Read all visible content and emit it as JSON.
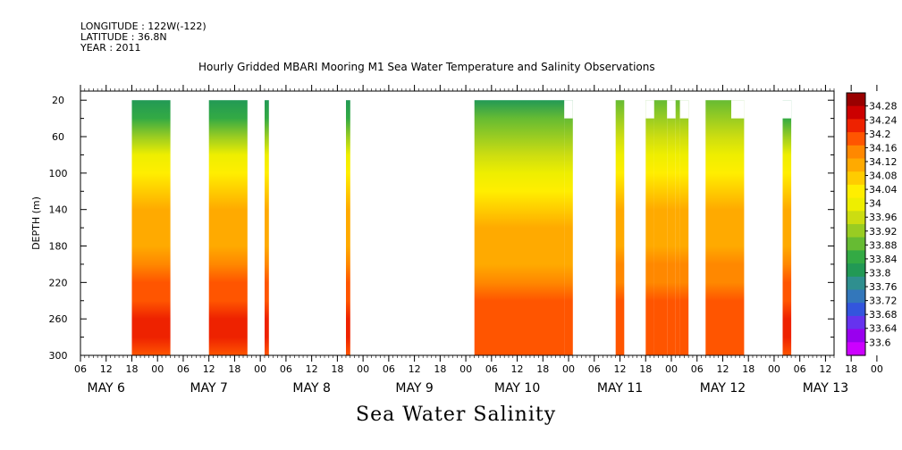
{
  "header": {
    "longitude": "LONGITUDE : 122W(-122)",
    "latitude": "LATITUDE : 36.8N",
    "year": "YEAR : 2011"
  },
  "chart_data": {
    "type": "heatmap",
    "title": "Hourly Gridded MBARI Mooring M1 Sea Water Temperature and Salinity Observations",
    "variable": "Sea Water Salinity",
    "xlabel": "",
    "ylabel": "DEPTH (m)",
    "ylim": [
      300,
      10
    ],
    "yticks": [
      20,
      60,
      100,
      140,
      180,
      220,
      260,
      300
    ],
    "x_hour_ticks": [
      "06",
      "12",
      "18",
      "00",
      "06",
      "12",
      "18",
      "00",
      "06",
      "12",
      "18",
      "00",
      "06",
      "12",
      "18",
      "00",
      "06",
      "12",
      "18",
      "00",
      "06",
      "12",
      "18",
      "00",
      "06",
      "12",
      "18",
      "00",
      "06",
      "12",
      "18",
      "00"
    ],
    "x_day_labels": [
      "MAY  6",
      "MAY  7",
      "MAY  8",
      "MAY  9",
      "MAY 10",
      "MAY 11",
      "MAY 12",
      "MAY 13"
    ],
    "colorbar": {
      "levels": [
        33.6,
        33.64,
        33.68,
        33.72,
        33.76,
        33.8,
        33.84,
        33.88,
        33.92,
        33.96,
        34,
        34.04,
        34.08,
        34.12,
        34.16,
        34.2,
        34.24,
        34.28
      ],
      "labels": [
        "34.28",
        "34.24",
        "34.2",
        "34.16",
        "34.12",
        "34.08",
        "34.04",
        "34",
        "33.96",
        "33.92",
        "33.88",
        "33.84",
        "33.8",
        "33.76",
        "33.72",
        "33.68",
        "33.64",
        "33.6"
      ],
      "colors": [
        "#cc00ff",
        "#9900ee",
        "#6633ee",
        "#3355dd",
        "#3377bb",
        "#2f8f8f",
        "#229955",
        "#33aa44",
        "#66bb33",
        "#99cc22",
        "#ccdd11",
        "#eeee00",
        "#ffee00",
        "#ffcc00",
        "#ffaa00",
        "#ff8800",
        "#ff5500",
        "#ee2200",
        "#cc0000",
        "#990000"
      ]
    },
    "profiles": {
      "depths": [
        20,
        40,
        60,
        80,
        100,
        120,
        140,
        160,
        180,
        200,
        220,
        240,
        260,
        280,
        300
      ],
      "A": [
        33.77,
        33.83,
        33.92,
        33.98,
        34.02,
        34.06,
        34.09,
        34.11,
        34.12,
        34.14,
        34.17,
        34.2,
        34.24,
        34.22,
        34.2
      ],
      "B": [
        33.8,
        33.85,
        33.9,
        33.96,
        34.0,
        34.04,
        34.08,
        34.1,
        34.1,
        34.11,
        34.15,
        34.18,
        34.2,
        34.19,
        34.17
      ],
      "C": [
        33.86,
        33.9,
        33.94,
        33.99,
        34.02,
        34.05,
        34.09,
        34.11,
        34.12,
        34.13,
        34.16,
        34.18,
        34.2,
        34.19,
        34.18
      ]
    },
    "segments": [
      {
        "start": "May 6 18:00",
        "end": "May 7 03:00",
        "profile": "A",
        "top_depth": 20
      },
      {
        "start": "May 7 12:00",
        "end": "May 7 21:00",
        "profile": "A",
        "top_depth": 20
      },
      {
        "start": "May 8 01:00",
        "end": "May 8 02:00",
        "profile": "A",
        "top_depth": 20
      },
      {
        "start": "May 8 20:00",
        "end": "May 8 21:00",
        "profile": "A",
        "top_depth": 20
      },
      {
        "start": "May 10 02:00",
        "end": "May 10 23:00",
        "profile": "B",
        "top_depth": 20
      },
      {
        "start": "May 10 23:00",
        "end": "May 11 01:00",
        "profile": "B",
        "top_depth": 40
      },
      {
        "start": "May 11 11:00",
        "end": "May 11 13:00",
        "profile": "C",
        "top_depth": 20
      },
      {
        "start": "May 11 18:00",
        "end": "May 11 20:00",
        "profile": "C",
        "top_depth": 40
      },
      {
        "start": "May 11 20:00",
        "end": "May 11 23:00",
        "profile": "C",
        "top_depth": 20
      },
      {
        "start": "May 11 23:00",
        "end": "May 12 01:00",
        "profile": "C",
        "top_depth": 40
      },
      {
        "start": "May 12 01:00",
        "end": "May 12 02:00",
        "profile": "C",
        "top_depth": 20
      },
      {
        "start": "May 12 02:00",
        "end": "May 12 04:00",
        "profile": "C",
        "top_depth": 40
      },
      {
        "start": "May 12 08:00",
        "end": "May 12 14:00",
        "profile": "C",
        "top_depth": 20
      },
      {
        "start": "May 12 14:00",
        "end": "May 12 17:00",
        "profile": "C",
        "top_depth": 40
      },
      {
        "start": "May 13 02:00",
        "end": "May 13 04:00",
        "profile": "A",
        "top_depth": 40
      }
    ]
  }
}
